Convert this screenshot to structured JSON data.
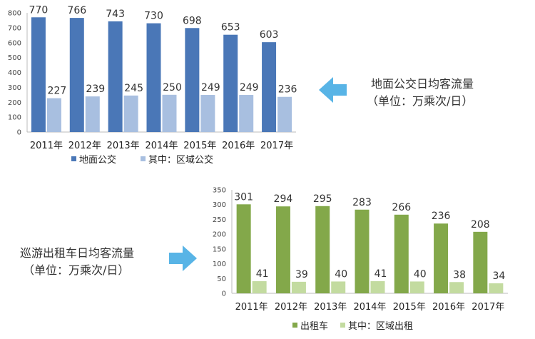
{
  "chart_data": [
    {
      "type": "bar",
      "categories": [
        "2011年",
        "2012年",
        "2013年",
        "2014年",
        "2015年",
        "2016年",
        "2017年"
      ],
      "series": [
        {
          "name": "地面公交",
          "values": [
            770,
            766,
            743,
            730,
            698,
            653,
            603
          ],
          "color": "#4a77b7"
        },
        {
          "name": "其中：区域公交",
          "values": [
            227,
            239,
            245,
            250,
            249,
            249,
            236
          ],
          "color": "#a8bfe0"
        }
      ],
      "ylim": [
        0,
        800
      ],
      "yticks": [
        0,
        100,
        200,
        300,
        400,
        500,
        600,
        700,
        800
      ],
      "legend_position": "bottom"
    },
    {
      "type": "bar",
      "categories": [
        "2011年",
        "2012年",
        "2013年",
        "2014年",
        "2015年",
        "2016年",
        "2017年"
      ],
      "series": [
        {
          "name": "出租车",
          "values": [
            301,
            294,
            295,
            283,
            266,
            236,
            208
          ],
          "color": "#83a84a"
        },
        {
          "name": "其中：区域出租",
          "values": [
            41,
            39,
            40,
            41,
            40,
            38,
            34
          ],
          "color": "#c3dba0"
        }
      ],
      "ylim": [
        0,
        350
      ],
      "yticks": [
        0,
        50,
        100,
        150,
        200,
        250,
        300,
        350
      ],
      "legend_position": "bottom"
    }
  ],
  "annotations": {
    "bus": {
      "line1": "地面公交日均客流量",
      "line2": "（单位：万乘次/日）",
      "arrow": "arrow-left-icon"
    },
    "taxi": {
      "line1": "巡游出租车日均客流量",
      "line2": "（单位：万乘次/日）",
      "arrow": "arrow-right-icon"
    }
  },
  "colors": {
    "arrow": "#58b4e6",
    "axis": "#bbbbbb"
  }
}
